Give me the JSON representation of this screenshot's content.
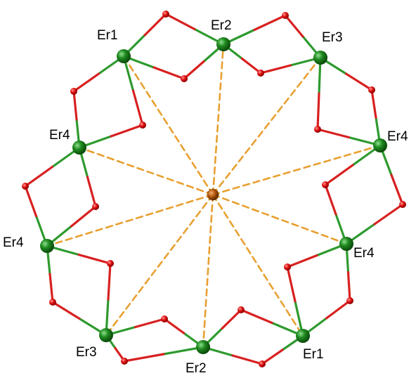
{
  "labels": {
    "er1_top": "Er1",
    "er2_top": "Er2",
    "er3_top": "Er3",
    "er4_right_upper": "Er4",
    "er4_right_lower": "Er4",
    "er1_bottom": "Er1",
    "er2_bottom": "Er2",
    "er3_bottom": "Er3",
    "er4_left_lower": "Er4",
    "er4_left_upper": "Er4"
  },
  "colors": {
    "erbium": "#1f8a1f",
    "oxygen": "#e01010",
    "bond_green": "#2e9a2e",
    "bond_red": "#d82020",
    "central_atom": "#b85a10",
    "dashed": "#e8a030"
  }
}
